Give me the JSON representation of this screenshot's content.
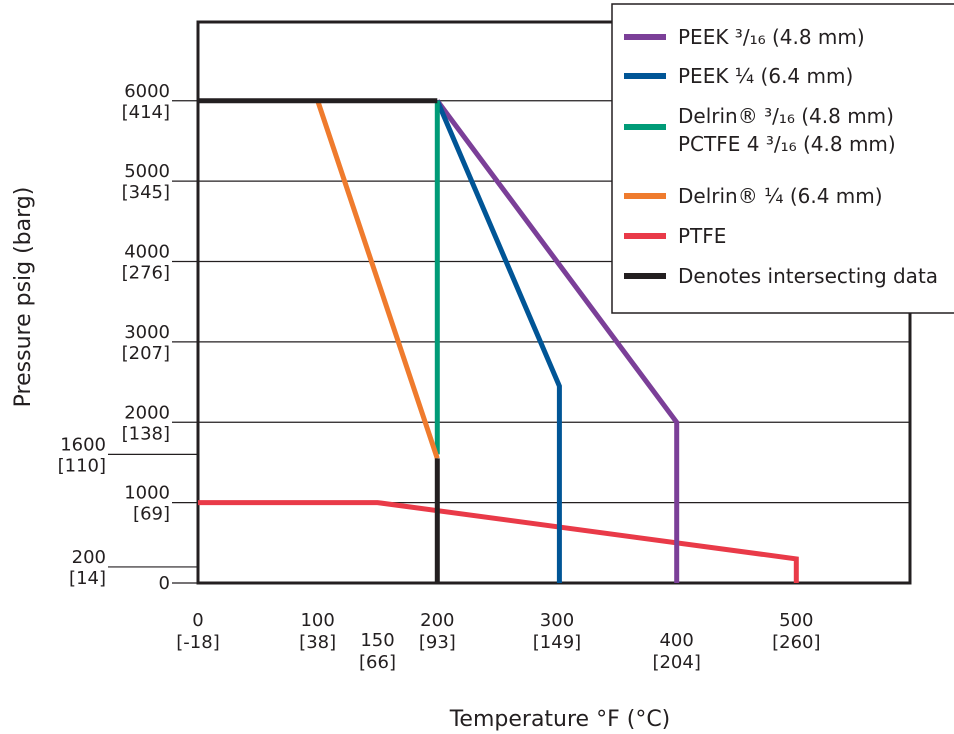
{
  "chart_data": {
    "type": "line",
    "xlabel": "Temperature °F (°C)",
    "ylabel": "Pressure psig (barg)",
    "xlim": [
      0,
      595
    ],
    "ylim": [
      0,
      6980
    ],
    "grid": true,
    "legend_position": "top-right",
    "y_ticks": [
      {
        "value": 0,
        "line1": "0",
        "line2": "",
        "minor": false
      },
      {
        "value": 200,
        "line1": "200",
        "line2": "[14]",
        "minor": true
      },
      {
        "value": 1000,
        "line1": "1000",
        "line2": "[69]",
        "minor": false
      },
      {
        "value": 1600,
        "line1": "1600",
        "line2": "[110]",
        "minor": true
      },
      {
        "value": 2000,
        "line1": "2000",
        "line2": "[138]",
        "minor": false
      },
      {
        "value": 3000,
        "line1": "3000",
        "line2": "[207]",
        "minor": false
      },
      {
        "value": 4000,
        "line1": "4000",
        "line2": "[276]",
        "minor": false
      },
      {
        "value": 5000,
        "line1": "5000",
        "line2": "[345]",
        "minor": false
      },
      {
        "value": 6000,
        "line1": "6000",
        "line2": "[414]",
        "minor": false
      }
    ],
    "x_ticks": [
      {
        "value": 0,
        "line1": "0",
        "line2": "[-18]",
        "drop": false
      },
      {
        "value": 100,
        "line1": "100",
        "line2": "[38]",
        "drop": false
      },
      {
        "value": 150,
        "line1": "150",
        "line2": "[66]",
        "drop": true
      },
      {
        "value": 200,
        "line1": "200",
        "line2": "[93]",
        "drop": false
      },
      {
        "value": 300,
        "line1": "300",
        "line2": "[149]",
        "drop": false
      },
      {
        "value": 400,
        "line1": "400",
        "line2": "[204]",
        "drop": true
      },
      {
        "value": 500,
        "line1": "500",
        "line2": "[260]",
        "drop": false
      }
    ],
    "series": [
      {
        "key": "ptfe",
        "color": "#e93a48",
        "points": [
          [
            0,
            1000
          ],
          [
            150,
            1000
          ],
          [
            500,
            300
          ],
          [
            500,
            0
          ]
        ]
      },
      {
        "key": "peek316",
        "color": "#7b3f98",
        "points": [
          [
            200,
            6000
          ],
          [
            400,
            2000
          ],
          [
            400,
            0
          ]
        ]
      },
      {
        "key": "peek14",
        "color": "#005596",
        "points": [
          [
            200,
            6000
          ],
          [
            302,
            2450
          ],
          [
            302,
            0
          ]
        ]
      },
      {
        "key": "delrin316",
        "color": "#009b77",
        "points": [
          [
            200,
            6000
          ],
          [
            200,
            1600
          ]
        ]
      },
      {
        "key": "delrin14",
        "color": "#ef7b2d",
        "points": [
          [
            100,
            6000
          ],
          [
            200,
            1550
          ]
        ]
      },
      {
        "key": "intersect",
        "color": "#231f20",
        "points": [
          [
            0,
            6000
          ],
          [
            200,
            6000
          ]
        ]
      },
      {
        "key": "intersect2",
        "color": "#231f20",
        "points": [
          [
            200,
            1550
          ],
          [
            200,
            0
          ]
        ]
      }
    ],
    "legend": [
      {
        "color": "#7b3f98",
        "lines": [
          "PEEK ³/₁₆ (4.8 mm)"
        ]
      },
      {
        "color": "#005596",
        "lines": [
          "PEEK ¼ (6.4 mm)"
        ]
      },
      {
        "color": "#009b77",
        "lines": [
          "Delrin® ³/₁₆ (4.8 mm)",
          "PCTFE 4 ³/₁₆ (4.8 mm)"
        ]
      },
      {
        "color": "#ef7b2d",
        "lines": [
          "Delrin® ¼ (6.4 mm)"
        ]
      },
      {
        "color": "#e93a48",
        "lines": [
          "PTFE"
        ]
      },
      {
        "color": "#231f20",
        "lines": [
          "Denotes intersecting data"
        ]
      }
    ]
  }
}
